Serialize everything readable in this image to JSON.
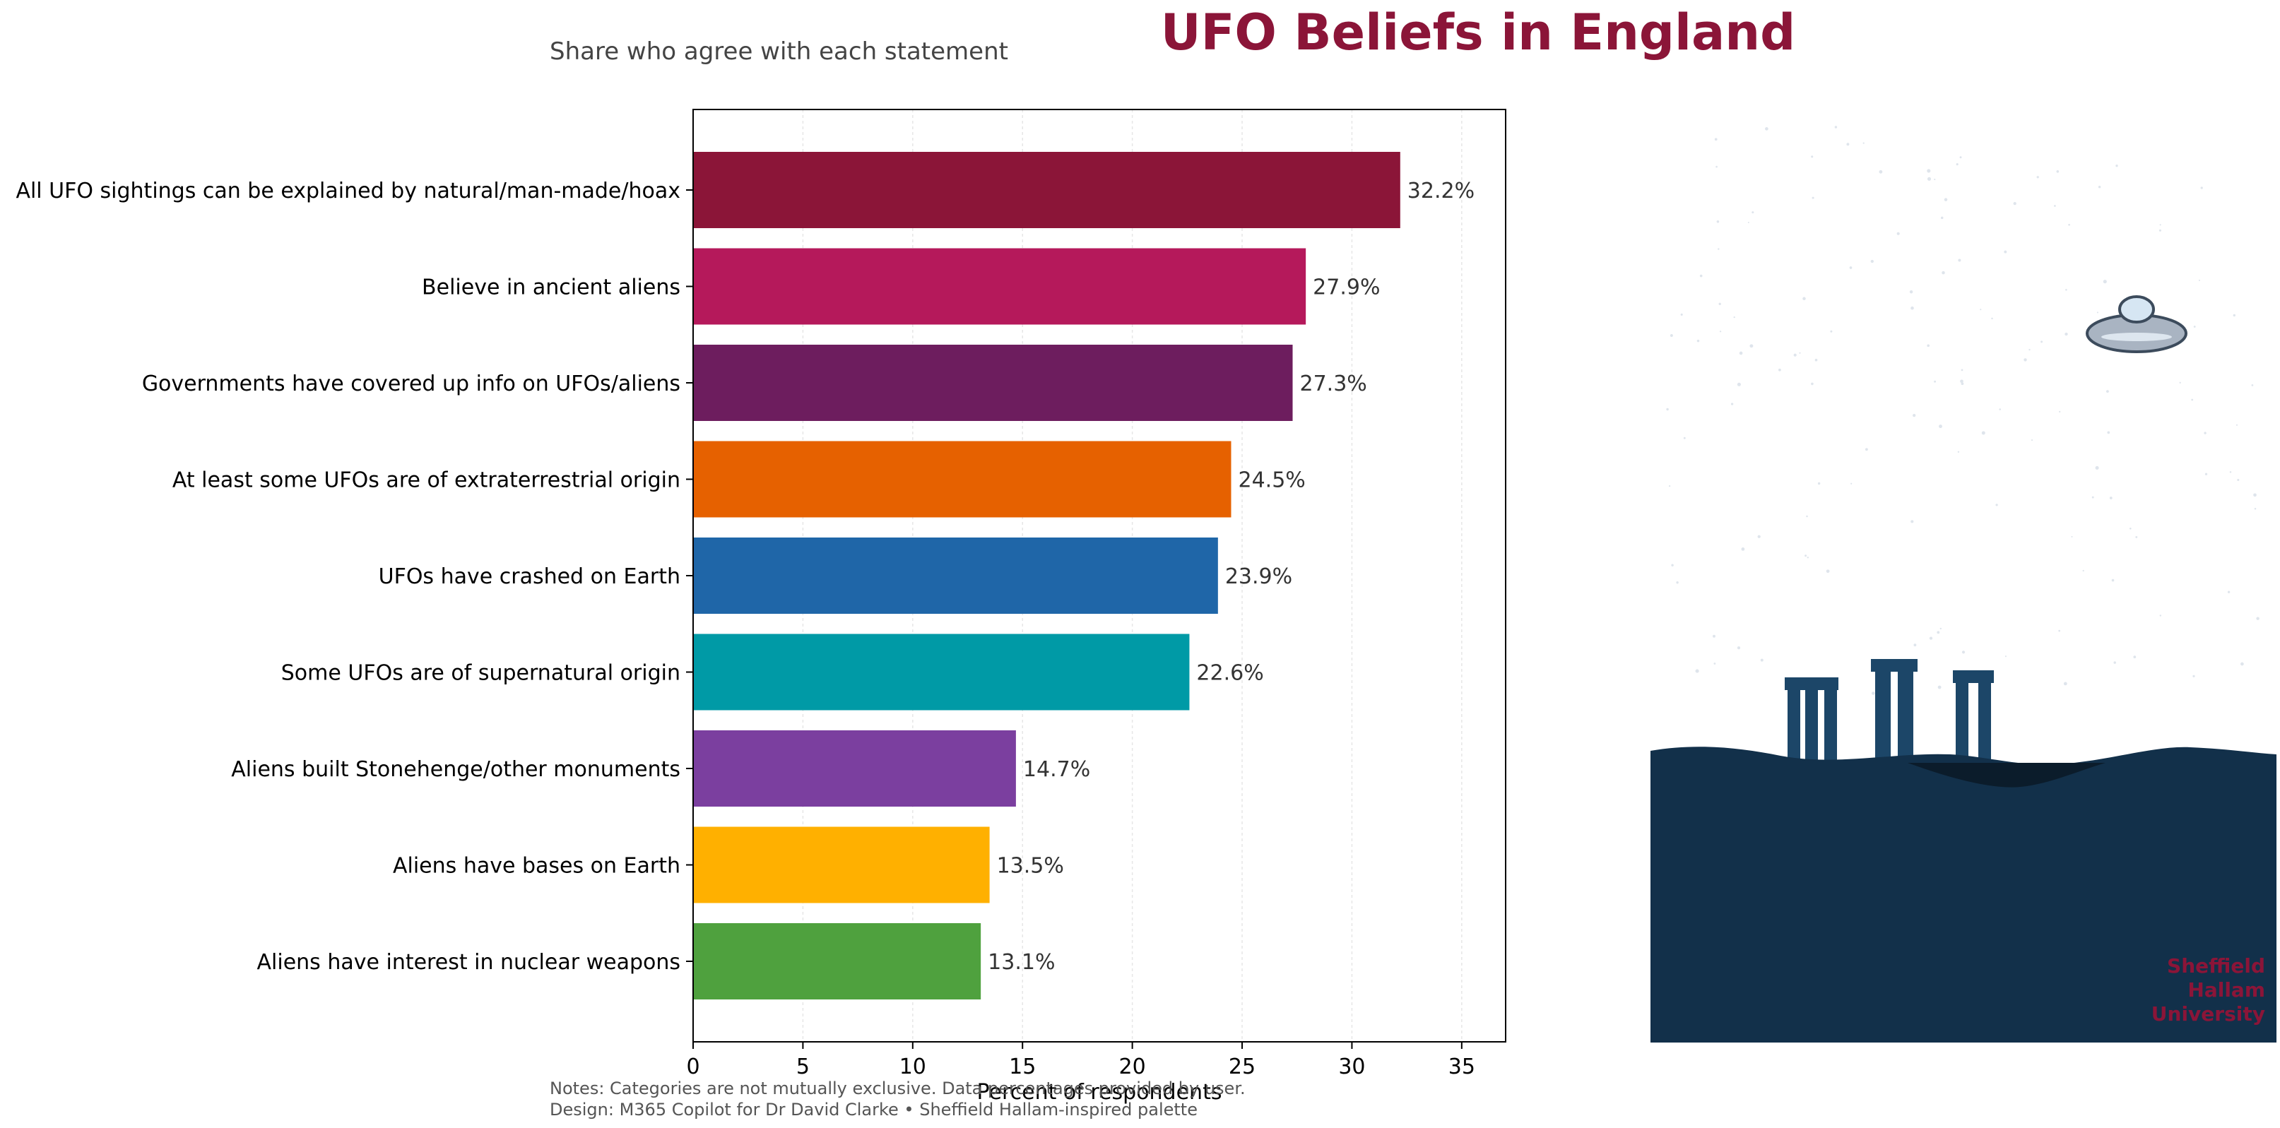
{
  "chart_data": {
    "type": "bar",
    "orientation": "horizontal",
    "title": "UFO Beliefs in England",
    "subtitle": "Share who agree with each statement",
    "xlabel": "Percent of respondents",
    "ylabel": "",
    "xlim": [
      0,
      37
    ],
    "x_ticks": [
      0,
      5,
      10,
      15,
      20,
      25,
      30,
      35
    ],
    "grid": "vertical",
    "value_suffix": "%",
    "categories": [
      "All UFO sightings can be explained by natural/man-made/hoax",
      "Believe in ancient aliens",
      "Governments have covered up info on UFOs/aliens",
      "At least some UFOs are of extraterrestrial origin",
      "UFOs have crashed on Earth",
      "Some UFOs are of supernatural origin",
      "Aliens built Stonehenge/other monuments",
      "Aliens have bases on Earth",
      "Aliens have interest in nuclear weapons"
    ],
    "values": [
      32.2,
      27.9,
      27.3,
      24.5,
      23.9,
      22.6,
      14.7,
      13.5,
      13.1
    ],
    "colors": [
      "#8B1538",
      "#B5195B",
      "#6D1D5E",
      "#E66100",
      "#1F66A8",
      "#009AA6",
      "#7B3F9F",
      "#FFB000",
      "#4FA13E"
    ]
  },
  "notes": {
    "line1": "Notes: Categories are not mutually exclusive. Data percentages provided by user.",
    "line2": "Design: M365 Copilot for Dr David Clarke • Sheffield Hallam-inspired palette"
  },
  "illustration": {
    "logo_lines": [
      "Sheffield",
      "Hallam",
      "University"
    ],
    "sky_color": "#ffffff",
    "ground_color": "#12304A",
    "stone_color": "#1C4668",
    "ufo_color": "#A9B4C2",
    "brand_color": "#8B1538"
  }
}
